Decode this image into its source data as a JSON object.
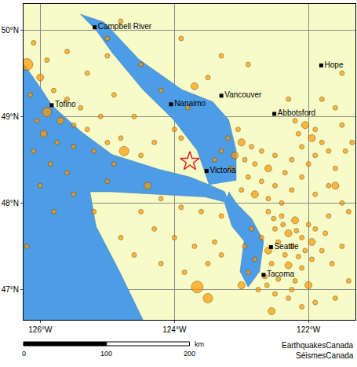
{
  "chart_data": {
    "type": "map",
    "xlim": [
      -126.25,
      -121.3
    ],
    "ylim": [
      46.65,
      50.3
    ],
    "xticks": [
      {
        "value": -126,
        "label": "126°W"
      },
      {
        "value": -124,
        "label": "124°W"
      },
      {
        "value": -122,
        "label": "122°W"
      }
    ],
    "yticks": [
      {
        "value": 47,
        "label": "47°N"
      },
      {
        "value": 48,
        "label": "48°N"
      },
      {
        "value": 49,
        "label": "49°N"
      },
      {
        "value": 50,
        "label": "50°N"
      }
    ],
    "grid": true,
    "water": [
      [
        [
          -126.25,
          49.61
        ],
        [
          -125.98,
          49.31
        ],
        [
          -125.83,
          49.13
        ],
        [
          -125.4,
          48.83
        ],
        [
          -124.93,
          48.56
        ],
        [
          -124.24,
          48.39
        ],
        [
          -123.77,
          48.3
        ],
        [
          -123.48,
          48.21
        ],
        [
          -123.25,
          48.13
        ],
        [
          -123.19,
          48.0
        ],
        [
          -123.54,
          48.07
        ],
        [
          -124.24,
          48.1
        ],
        [
          -124.93,
          48.13
        ],
        [
          -125.26,
          48.13
        ],
        [
          -125.17,
          47.73
        ],
        [
          -124.82,
          47.21
        ],
        [
          -124.47,
          46.65
        ],
        [
          -126.25,
          46.65
        ]
      ],
      [
        [
          -123.48,
          48.21
        ],
        [
          -123.66,
          48.61
        ],
        [
          -124.01,
          48.96
        ],
        [
          -124.47,
          49.31
        ],
        [
          -124.93,
          49.74
        ],
        [
          -125.17,
          50.0
        ],
        [
          -125.4,
          50.18
        ],
        [
          -125.05,
          50.09
        ],
        [
          -124.53,
          49.66
        ],
        [
          -123.89,
          49.31
        ],
        [
          -123.43,
          49.17
        ],
        [
          -123.19,
          48.96
        ],
        [
          -123.08,
          48.61
        ],
        [
          -123.08,
          48.26
        ]
      ],
      [
        [
          -123.19,
          48.13
        ],
        [
          -123.08,
          48.0
        ],
        [
          -122.85,
          47.82
        ],
        [
          -122.67,
          47.56
        ],
        [
          -122.73,
          47.21
        ],
        [
          -122.9,
          47.03
        ],
        [
          -123.02,
          47.21
        ],
        [
          -122.96,
          47.56
        ],
        [
          -123.14,
          47.73
        ],
        [
          -123.25,
          48.0
        ]
      ]
    ],
    "quakes": {
      "color": "#ff9900",
      "marker": "circle",
      "x": [
        -122.6,
        -122.4,
        -122.2,
        -122.0,
        -121.9,
        -122.5,
        -122.3,
        -122.1,
        -121.95,
        -122.7,
        -122.45,
        -122.25,
        -122.05,
        -122.6,
        -122.35,
        -122.15,
        -121.95,
        -122.8,
        -122.55,
        -122.3,
        -122.1,
        -122.9,
        -122.65,
        -122.45,
        -122.2,
        -122.0,
        -122.75,
        -122.5,
        -122.3,
        -121.9,
        -122.1,
        -122.55,
        -122.85,
        -122.95,
        -121.8,
        -121.75,
        -122.38,
        -122.18,
        -122.52,
        -122.62,
        -122.25,
        -121.65,
        -121.7,
        -123.66,
        -123.5,
        -123.0,
        -123.2,
        -123.0,
        -122.85,
        -122.7,
        -123.1,
        -122.95,
        -122.8,
        -122.6,
        -123.15,
        -122.9,
        -122.7,
        -122.5,
        -123.0,
        -122.8,
        -122.6,
        -122.4,
        -123.3,
        -122.5,
        -122.35,
        -123.4,
        -122.25,
        -123.05,
        -122.2,
        -122.05,
        -121.9,
        -122.15,
        -121.95,
        -121.8,
        -122.1,
        -121.7,
        -121.9,
        -122.0,
        -121.6,
        -121.5,
        -121.6,
        -121.8,
        -122.3,
        -121.45,
        -122.25,
        -121.7,
        -121.5,
        -121.9,
        -122.1,
        -121.4,
        -121.6,
        -123.8,
        -124.2,
        -123.5,
        -124.5,
        -125.0,
        -124.8,
        -123.9,
        -123.3,
        -122.9,
        -123.7,
        -124.0,
        -124.3,
        -123.9,
        -124.6,
        -124.9,
        -125.3,
        -125.6,
        -125.0,
        -126.2,
        -126.0,
        -125.8,
        -125.6,
        -125.9,
        -125.7,
        -125.5,
        -125.3,
        -125.95,
        -125.75,
        -125.5,
        -125.2,
        -125.0,
        -124.8,
        -126.1,
        -125.85,
        -125.6,
        -126.05,
        -125.4,
        -125.1,
        -124.75,
        -124.9,
        -124.5,
        -126.15,
        -125.9,
        -126.1,
        -124.2,
        -123.9,
        -123.6,
        -123.3,
        -124.5,
        -124.3,
        -124.0,
        -123.7,
        -123.4,
        -124.6,
        -124.2,
        -123.85,
        -123.5,
        -124.8,
        -125.2,
        -125.5,
        -125.0,
        -124.4,
        -123.3,
        -126.0,
        -125.8,
        -126.2,
        -121.5,
        -121.4,
        -121.6,
        -121.35,
        -121.5
      ],
      "y": [
        47.9,
        47.85,
        47.8,
        47.75,
        47.7,
        47.7,
        47.65,
        47.6,
        47.55,
        47.6,
        47.55,
        47.5,
        47.45,
        47.45,
        47.4,
        47.38,
        47.35,
        47.35,
        47.3,
        47.28,
        47.25,
        47.2,
        47.15,
        47.12,
        47.1,
        47.05,
        47.0,
        46.95,
        46.9,
        46.85,
        46.8,
        46.75,
        47.7,
        47.5,
        47.45,
        47.65,
        47.75,
        47.68,
        47.82,
        47.05,
        47.0,
        47.3,
        47.85,
        47.03,
        46.9,
        47.05,
        48.75,
        48.7,
        48.65,
        48.6,
        48.55,
        48.5,
        48.45,
        48.4,
        48.4,
        48.3,
        48.25,
        48.2,
        48.15,
        48.1,
        48.05,
        48.0,
        48.6,
        48.55,
        48.35,
        48.5,
        48.15,
        48.85,
        48.95,
        48.9,
        48.85,
        48.8,
        48.75,
        48.7,
        48.65,
        48.6,
        48.55,
        48.45,
        48.4,
        48.9,
        49.1,
        49.2,
        49.2,
        48.6,
        48.5,
        48.2,
        48.0,
        48.1,
        48.3,
        47.9,
        48.2,
        49.1,
        49.3,
        49.45,
        49.6,
        49.9,
        50.1,
        49.9,
        49.7,
        49.6,
        49.35,
        48.85,
        48.7,
        48.75,
        49.0,
        49.25,
        49.5,
        49.75,
        49.7,
        49.6,
        49.45,
        49.3,
        49.2,
        49.05,
        48.95,
        48.9,
        48.85,
        48.8,
        48.7,
        48.65,
        48.6,
        48.7,
        48.75,
        48.6,
        48.45,
        48.35,
        48.95,
        49.1,
        49.0,
        48.6,
        48.45,
        48.55,
        49.25,
        49.65,
        49.85,
        48.05,
        47.95,
        47.9,
        47.85,
        47.9,
        47.7,
        47.6,
        47.5,
        47.55,
        47.4,
        47.3,
        47.2,
        47.3,
        47.6,
        47.9,
        48.1,
        48.25,
        48.2,
        47.4,
        48.2,
        47.9,
        47.5,
        47.5,
        47.1,
        46.9,
        48.7,
        49.5
      ],
      "size": [
        1,
        1,
        2,
        1,
        1,
        1,
        2,
        1,
        2,
        1,
        1,
        1,
        1,
        2,
        1,
        1,
        1,
        1,
        1,
        2,
        1,
        1,
        1,
        1,
        1,
        2,
        1,
        1,
        1,
        1,
        1,
        2,
        1,
        1,
        1,
        1,
        1,
        1,
        1,
        1,
        1,
        1,
        1,
        4,
        3,
        2,
        1,
        2,
        1,
        1,
        2,
        1,
        1,
        2,
        1,
        1,
        1,
        1,
        1,
        2,
        1,
        1,
        1,
        1,
        1,
        1,
        1,
        1,
        1,
        2,
        1,
        1,
        2,
        1,
        1,
        1,
        1,
        1,
        1,
        1,
        1,
        1,
        1,
        1,
        1,
        1,
        1,
        1,
        1,
        1,
        2,
        1,
        1,
        1,
        1,
        1,
        1,
        1,
        1,
        1,
        2,
        1,
        1,
        1,
        1,
        1,
        1,
        1,
        1,
        4,
        2,
        1,
        1,
        3,
        2,
        1,
        1,
        2,
        1,
        1,
        1,
        1,
        1,
        1,
        1,
        1,
        1,
        1,
        1,
        3,
        1,
        1,
        1,
        1,
        1,
        1,
        1,
        1,
        1,
        1,
        1,
        1,
        1,
        1,
        1,
        1,
        1,
        1,
        1,
        1,
        1,
        1,
        2,
        1,
        1,
        1,
        1,
        1,
        1,
        1,
        1,
        1
      ]
    },
    "epicenter": {
      "x": -123.77,
      "y": 48.48,
      "marker": "star-open",
      "color": "#e02020"
    },
    "places": [
      {
        "name": "Campbell River",
        "x": -125.19,
        "y": 50.03
      },
      {
        "name": "Nanaimo",
        "x": -124.05,
        "y": 49.14
      },
      {
        "name": "Vancouver",
        "x": -123.3,
        "y": 49.24
      },
      {
        "name": "Abbotsford",
        "x": -122.51,
        "y": 49.03
      },
      {
        "name": "Hope",
        "x": -121.81,
        "y": 49.59
      },
      {
        "name": "Tofino",
        "x": -125.83,
        "y": 49.13
      },
      {
        "name": "Victoria",
        "x": -123.52,
        "y": 48.37
      },
      {
        "name": "Seattle",
        "x": -122.56,
        "y": 47.49
      },
      {
        "name": "Tacoma",
        "x": -122.67,
        "y": 47.17
      }
    ],
    "scale_bar": {
      "ticks": [
        0,
        100,
        200
      ],
      "unit": "km"
    },
    "credits": [
      "EarthquakesCanada",
      "SéismesCanada"
    ]
  }
}
